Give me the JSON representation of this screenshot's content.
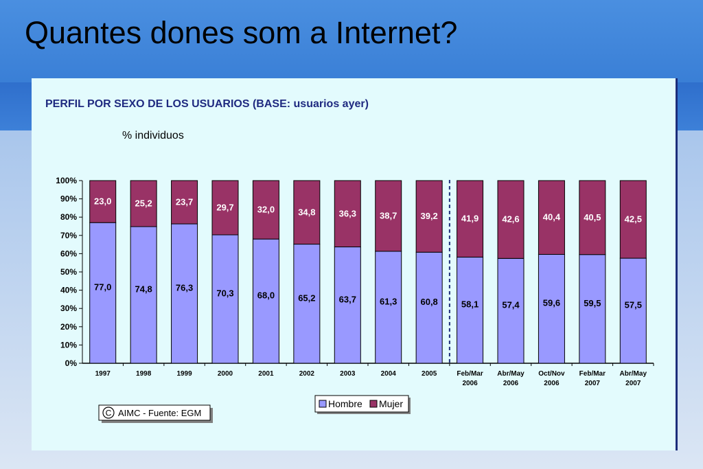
{
  "slide": {
    "title": "Quantes dones som a Internet?"
  },
  "chart_data": {
    "type": "bar",
    "stacked": true,
    "percent": true,
    "title": "PERFIL POR SEXO DE LOS USUARIOS (BASE: usuarios ayer)",
    "subtitle": "% individuos",
    "categories": [
      [
        "1997"
      ],
      [
        "1998"
      ],
      [
        "1999"
      ],
      [
        "2000"
      ],
      [
        "2001"
      ],
      [
        "2002"
      ],
      [
        "2003"
      ],
      [
        "2004"
      ],
      [
        "2005"
      ],
      [
        "Feb/Mar",
        "2006"
      ],
      [
        "Abr/May",
        "2006"
      ],
      [
        "Oct/Nov",
        "2006"
      ],
      [
        "Feb/Mar",
        "2007"
      ],
      [
        "Abr/May",
        "2007"
      ]
    ],
    "series": [
      {
        "name": "Hombre",
        "color": "#9999ff",
        "values": [
          77.0,
          74.8,
          76.3,
          70.3,
          68.0,
          65.2,
          63.7,
          61.3,
          60.8,
          58.1,
          57.4,
          59.6,
          59.5,
          57.5
        ],
        "labels": [
          "77,0",
          "74,8",
          "76,3",
          "70,3",
          "68,0",
          "65,2",
          "63,7",
          "61,3",
          "60,8",
          "58,1",
          "57,4",
          "59,6",
          "59,5",
          "57,5"
        ]
      },
      {
        "name": "Mujer",
        "color": "#993366",
        "values": [
          23.0,
          25.2,
          23.7,
          29.7,
          32.0,
          34.8,
          36.3,
          38.7,
          39.2,
          41.9,
          42.6,
          40.4,
          40.5,
          42.5
        ],
        "labels": [
          "23,0",
          "25,2",
          "23,7",
          "29,7",
          "32,0",
          "34,8",
          "36,3",
          "38,7",
          "39,2",
          "41,9",
          "42,6",
          "40,4",
          "40,5",
          "42,5"
        ]
      }
    ],
    "yticks": [
      "0%",
      "10%",
      "20%",
      "30%",
      "40%",
      "50%",
      "60%",
      "70%",
      "80%",
      "90%",
      "100%"
    ],
    "ylim": [
      0,
      100
    ],
    "grid": false,
    "legend_position": "bottom",
    "separator_after_category": "2005",
    "source_note": "AIMC - Fuente: EGM",
    "source_symbol": "C"
  }
}
